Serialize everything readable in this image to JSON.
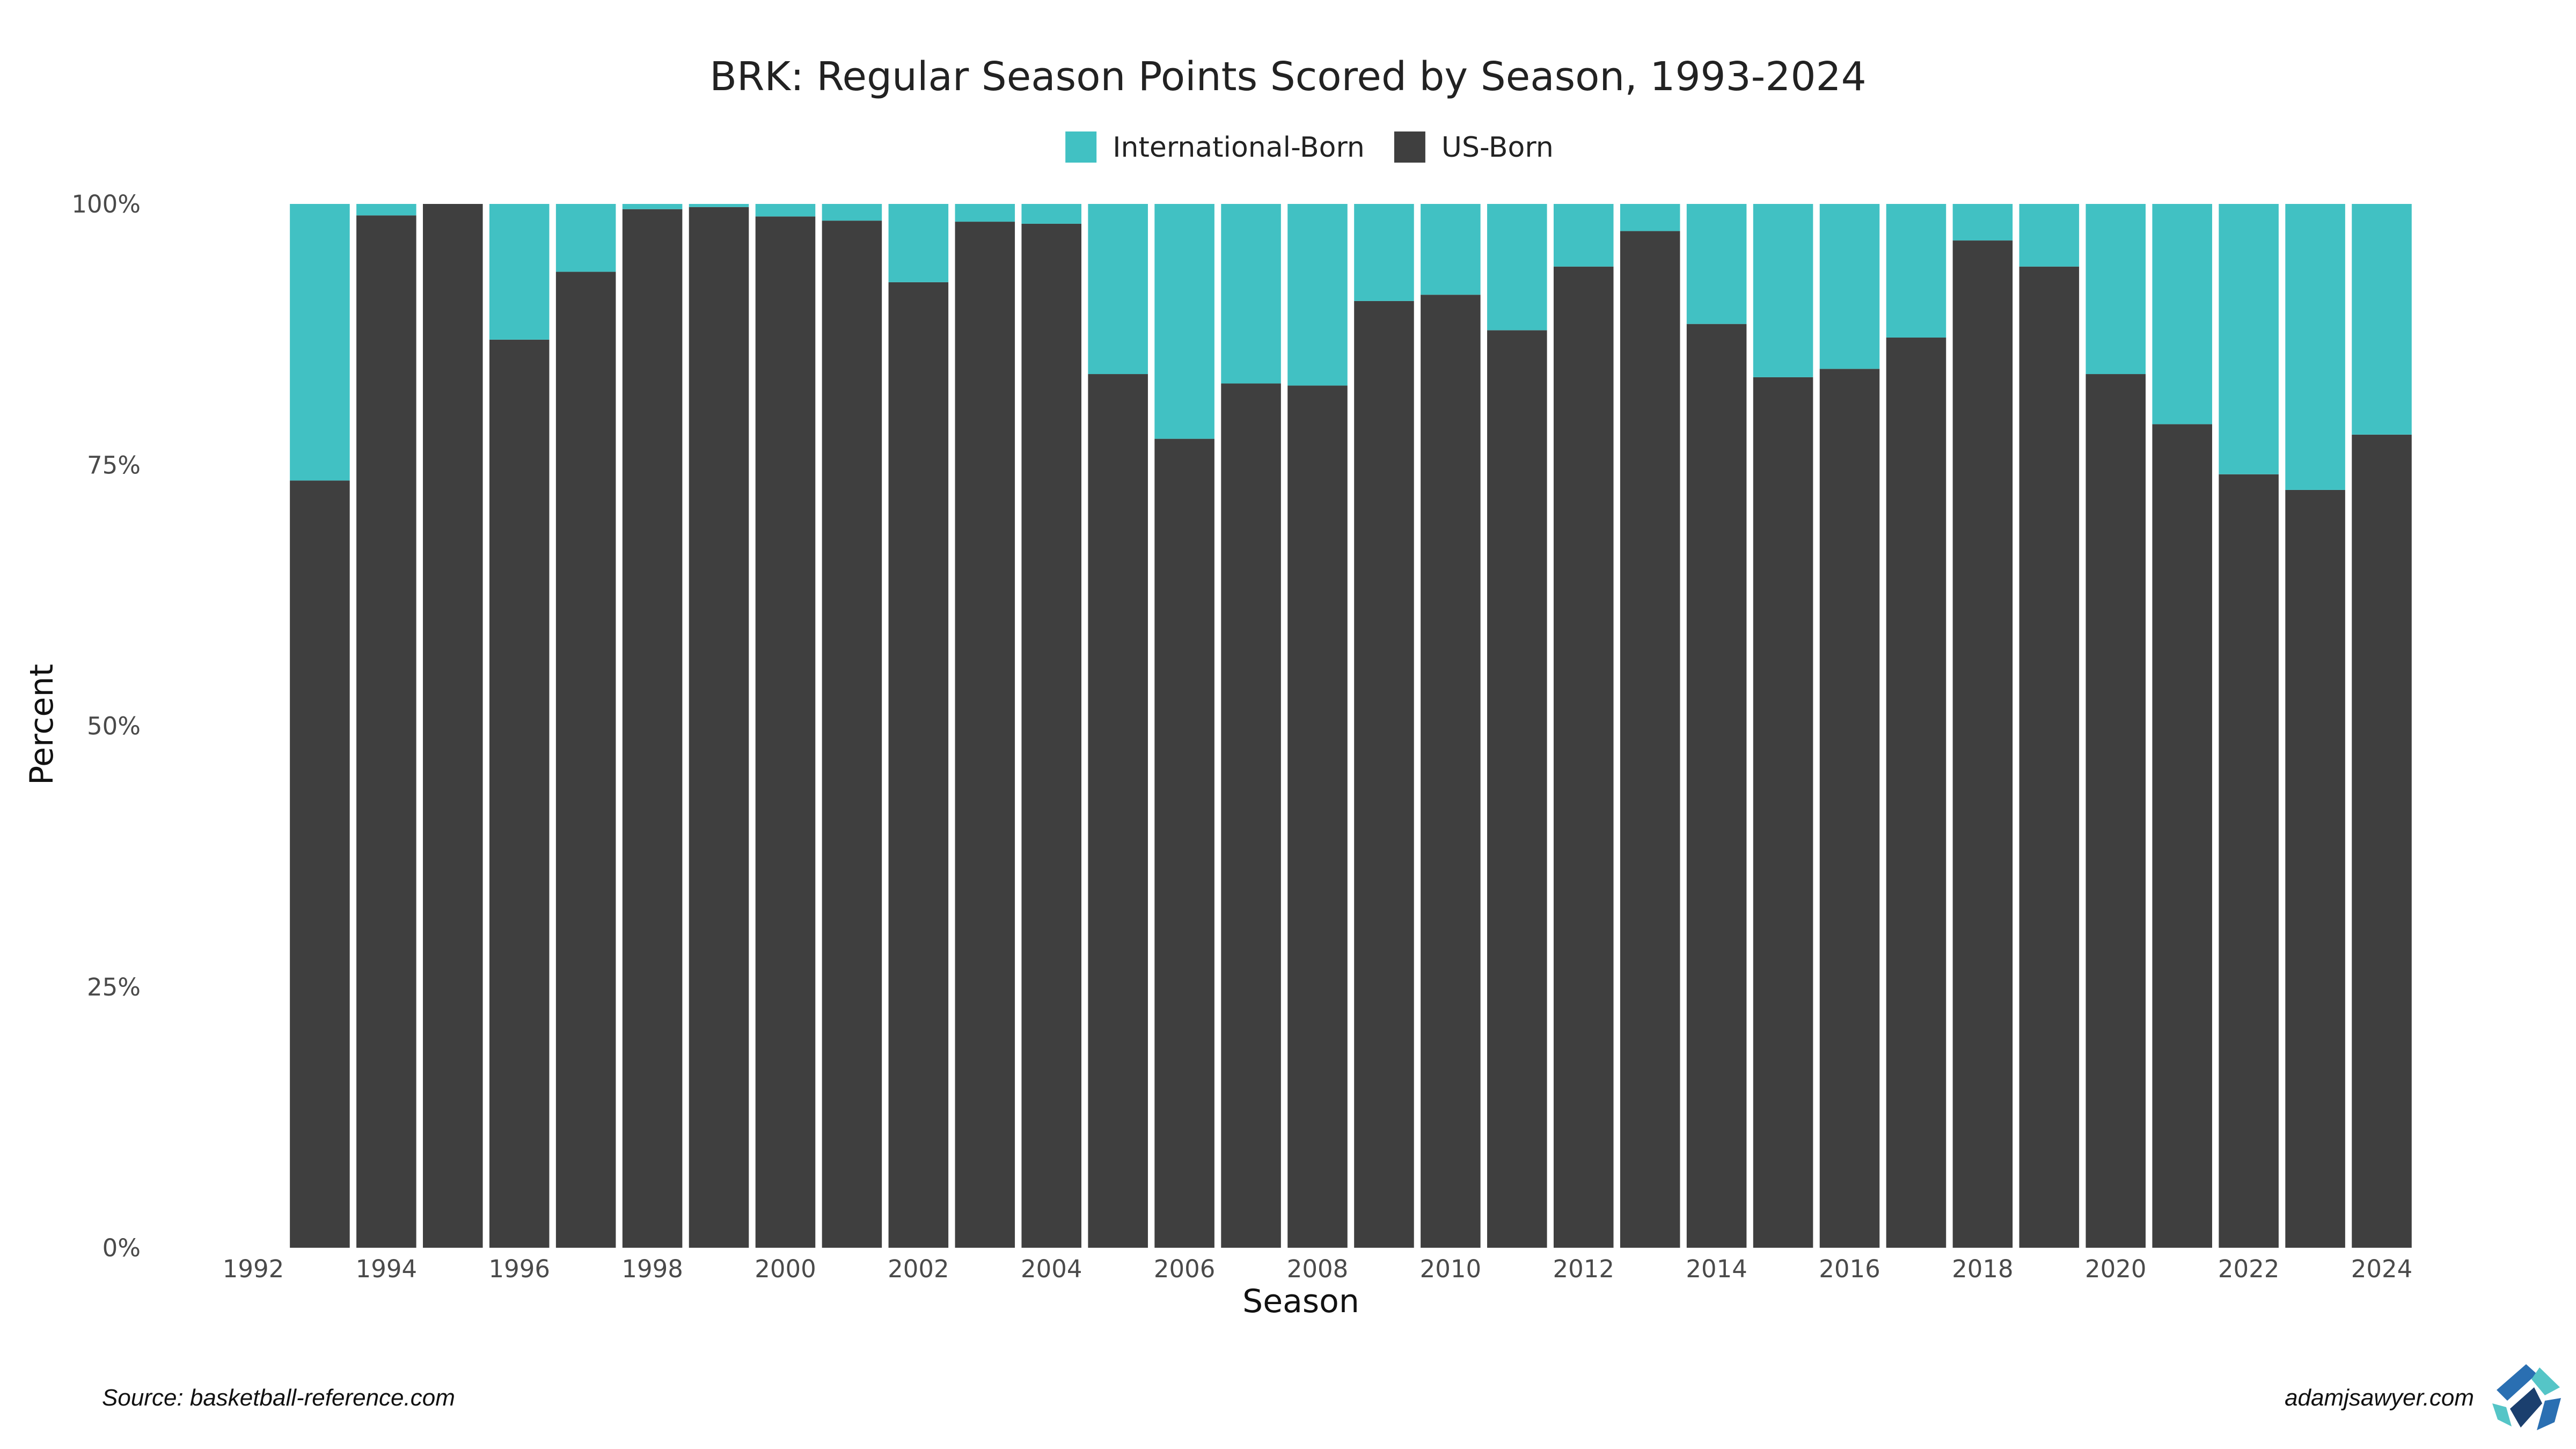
{
  "chart_data": {
    "type": "bar",
    "stacked": true,
    "title": "BRK: Regular Season Points Scored by Season, 1993-2024",
    "xlabel": "Season",
    "ylabel": "Percent",
    "ylim": [
      0,
      1
    ],
    "xlim": [
      1992,
      2024
    ],
    "x_ticks": [
      "1992",
      "1994",
      "1996",
      "1998",
      "2000",
      "2002",
      "2004",
      "2006",
      "2008",
      "2010",
      "2012",
      "2014",
      "2016",
      "2018",
      "2020",
      "2022",
      "2024"
    ],
    "y_ticks": [
      "0%",
      "25%",
      "50%",
      "75%",
      "100%"
    ],
    "legend_position": "top",
    "grid": false,
    "categories": [
      1993,
      1994,
      1995,
      1996,
      1997,
      1998,
      1999,
      2000,
      2001,
      2002,
      2003,
      2004,
      2005,
      2006,
      2007,
      2008,
      2009,
      2010,
      2011,
      2012,
      2013,
      2014,
      2015,
      2016,
      2017,
      2018,
      2019,
      2020,
      2021,
      2022,
      2023,
      2024
    ],
    "series": [
      {
        "name": "US-Born",
        "color": "#3f3f3f",
        "values": [
          0.735,
          0.989,
          1.0,
          0.87,
          0.935,
          0.995,
          0.997,
          0.988,
          0.984,
          0.925,
          0.983,
          0.981,
          0.837,
          0.775,
          0.828,
          0.826,
          0.907,
          0.913,
          0.879,
          0.94,
          0.974,
          0.885,
          0.834,
          0.842,
          0.872,
          0.965,
          0.94,
          0.837,
          0.789,
          0.741,
          0.726,
          0.779
        ]
      },
      {
        "name": "International-Born",
        "color": "#41c1c3",
        "values": [
          0.265,
          0.011,
          0.0,
          0.13,
          0.065,
          0.005,
          0.003,
          0.012,
          0.016,
          0.075,
          0.017,
          0.019,
          0.163,
          0.225,
          0.172,
          0.174,
          0.093,
          0.087,
          0.121,
          0.06,
          0.026,
          0.115,
          0.166,
          0.158,
          0.128,
          0.035,
          0.06,
          0.163,
          0.211,
          0.259,
          0.274,
          0.221
        ]
      }
    ]
  },
  "legend_order": [
    "International-Born",
    "US-Born"
  ],
  "footer": {
    "source": "Source: basketball-reference.com",
    "site": "adamjsawyer.com"
  },
  "logo": {
    "icon": "adamjsawyer-logo-icon",
    "colors": [
      "#2a6fb2",
      "#55c5c7",
      "#1b3f6e"
    ]
  }
}
